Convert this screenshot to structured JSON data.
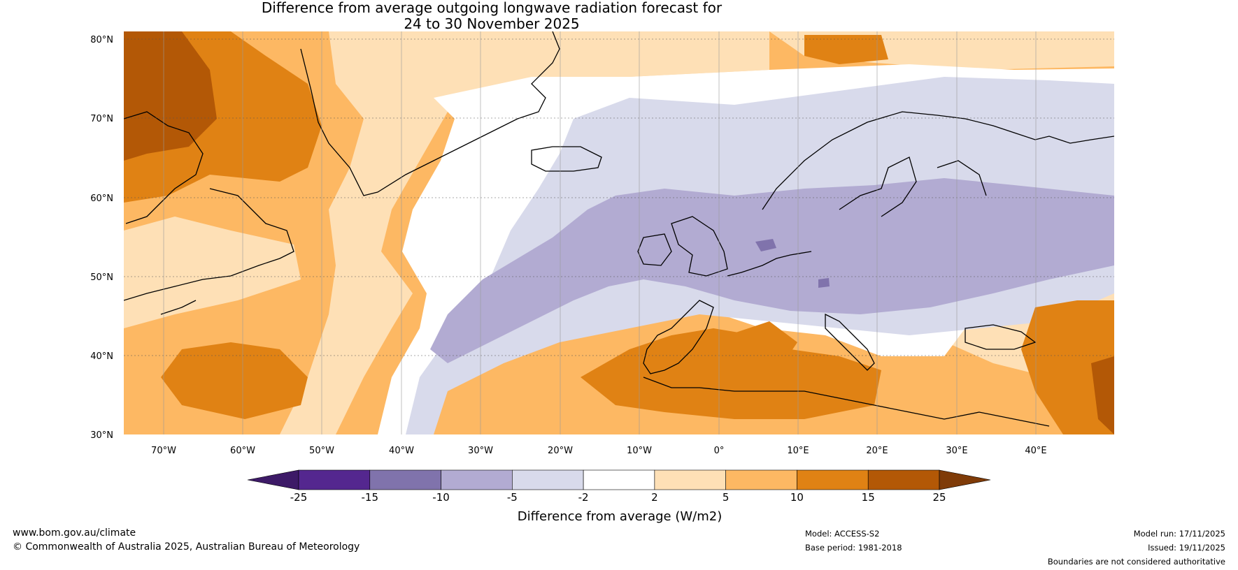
{
  "title": {
    "line1": "Difference from average outgoing longwave radiation forecast for",
    "line2": "24 to 30 November 2025"
  },
  "map": {
    "lat_labels": [
      "80°N",
      "70°N",
      "60°N",
      "50°N",
      "40°N",
      "30°N"
    ],
    "lon_labels": [
      "70°W",
      "60°W",
      "50°W",
      "40°W",
      "30°W",
      "20°W",
      "10°W",
      "0°",
      "10°E",
      "20°E",
      "30°E",
      "40°E"
    ],
    "region": "North Atlantic and Europe",
    "anomaly_pattern": [
      {
        "area": "Northern Canada / Baffin Island",
        "class": "10 to 25"
      },
      {
        "area": "Greenland and Labrador Sea",
        "class": "5 to 15"
      },
      {
        "area": "Mid-Atlantic band",
        "class": "-10 to -2"
      },
      {
        "area": "British Isles and Central Europe",
        "class": "-10 to -5"
      },
      {
        "area": "Scandinavia",
        "class": "-5 to -2"
      },
      {
        "area": "North Africa and Mediterranean",
        "class": "5 to 15"
      },
      {
        "area": "Eastern Mediterranean / Middle East",
        "class": "10 to 15"
      }
    ]
  },
  "colorbar": {
    "ticks": [
      "-25",
      "-15",
      "-10",
      "-5",
      "-2",
      "2",
      "5",
      "10",
      "15",
      "25"
    ],
    "colors": [
      "#3d1a67",
      "#54278f",
      "#8073ac",
      "#b2abd2",
      "#d8daeb",
      "#ffffff",
      "#fee0b6",
      "#fdb863",
      "#e08214",
      "#b35806",
      "#7f3b08"
    ],
    "title": "Difference from average (W/m2)"
  },
  "footer": {
    "website": "www.bom.gov.au/climate",
    "copyright": "© Commonwealth of Australia 2025, Australian Bureau of Meteorology",
    "model": "Model: ACCESS-S2",
    "base_period": "Base period: 1981-2018",
    "model_run": "Model run: 17/11/2025",
    "issued": "Issued: 19/11/2025",
    "disclaimer": "Boundaries are not considered authoritative"
  }
}
